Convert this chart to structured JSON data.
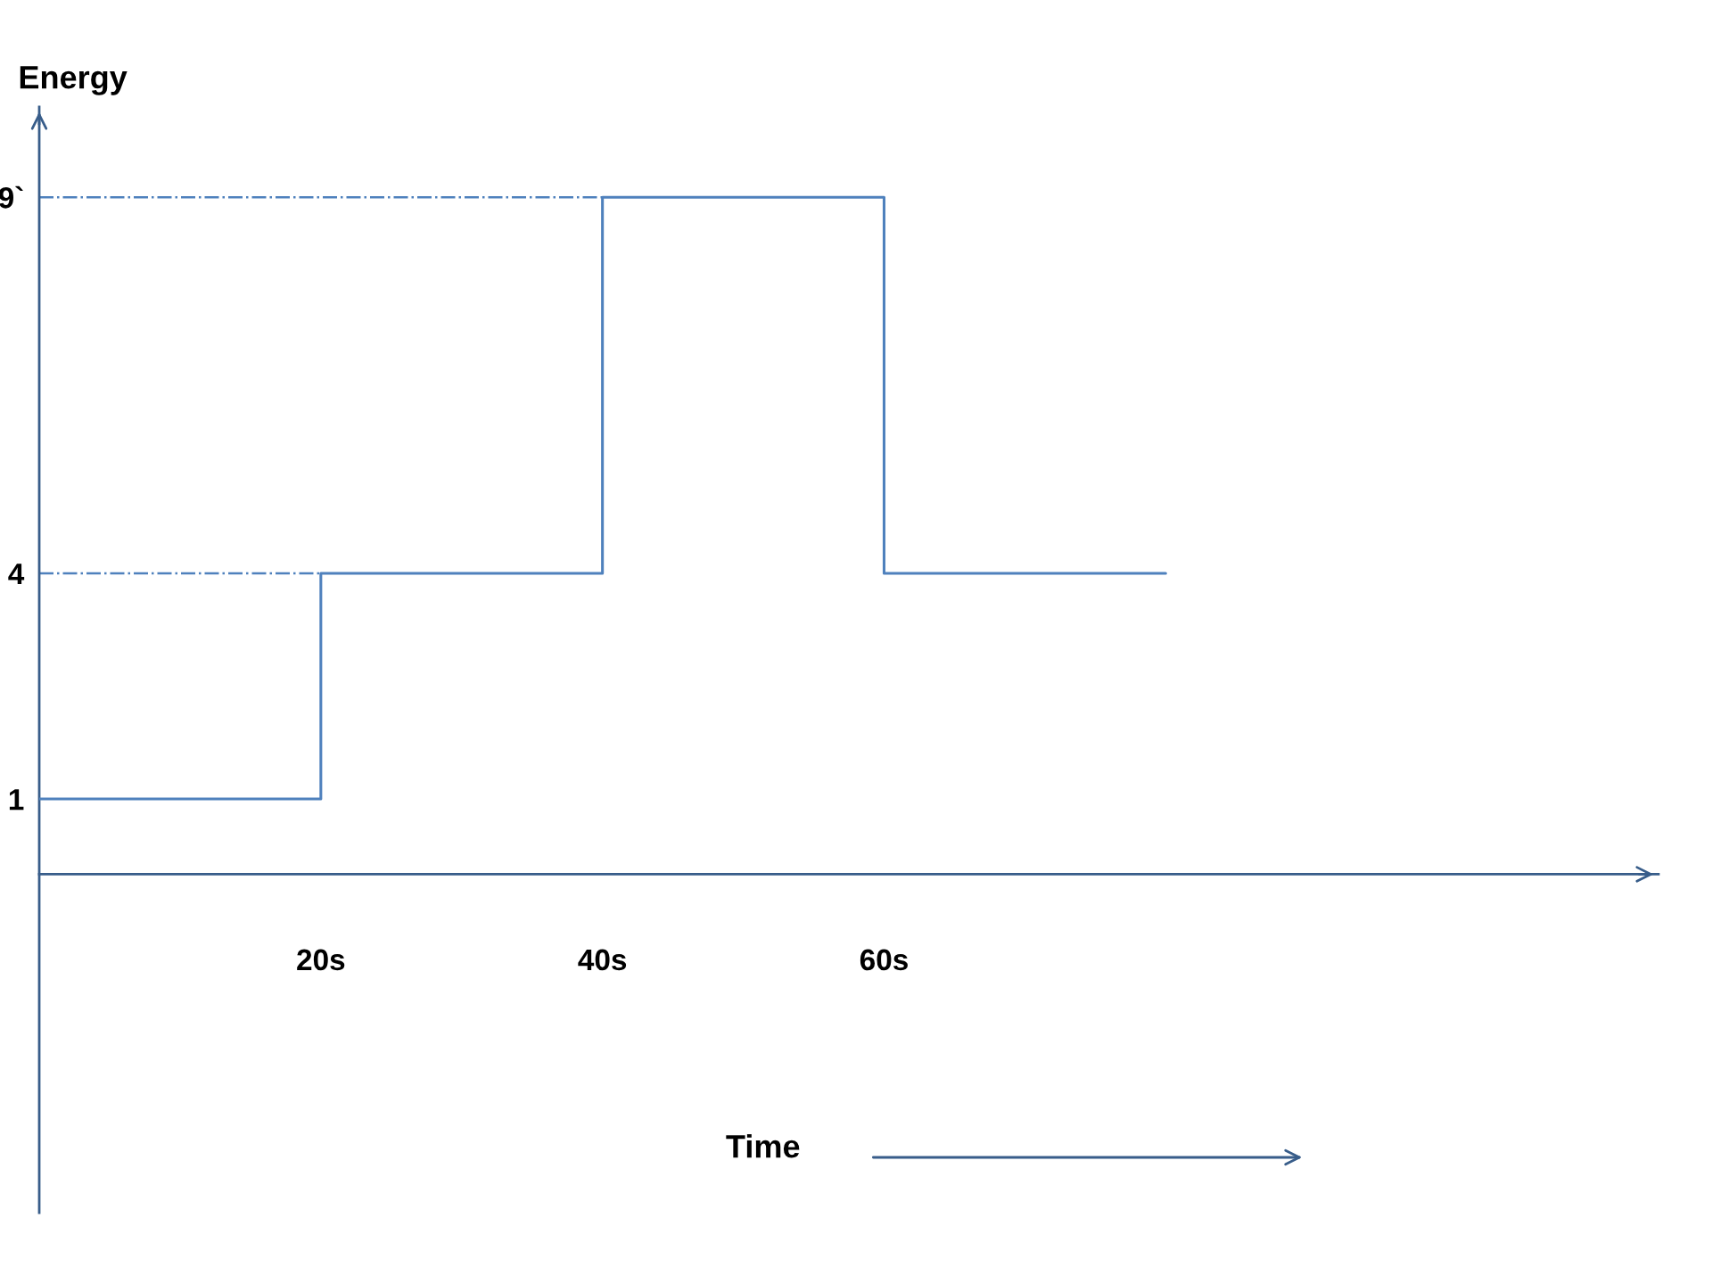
{
  "chart_data": {
    "type": "step",
    "x": [
      0,
      20,
      40,
      60,
      80
    ],
    "values": [
      1,
      4,
      9,
      4,
      4
    ],
    "color": "#4f81bd",
    "line_style": "solid",
    "xlabel": "Time",
    "ylabel": "Energy",
    "xlim": [
      0,
      115
    ],
    "ylim": [
      -4.5,
      10.2
    ],
    "xticks": [
      {
        "value": 20,
        "label": "20s"
      },
      {
        "value": 40,
        "label": "40s"
      },
      {
        "value": 60,
        "label": "60s"
      }
    ],
    "yticks": [
      1,
      4,
      {
        "value": 9,
        "label": "9`"
      }
    ],
    "ref_lines": [
      {
        "axis": "y",
        "value": 9,
        "line_style": "dashdot",
        "color": "#4f81bd"
      },
      {
        "axis": "y",
        "value": 4,
        "line_style": "dashdot",
        "color": "#4f81bd"
      }
    ]
  }
}
